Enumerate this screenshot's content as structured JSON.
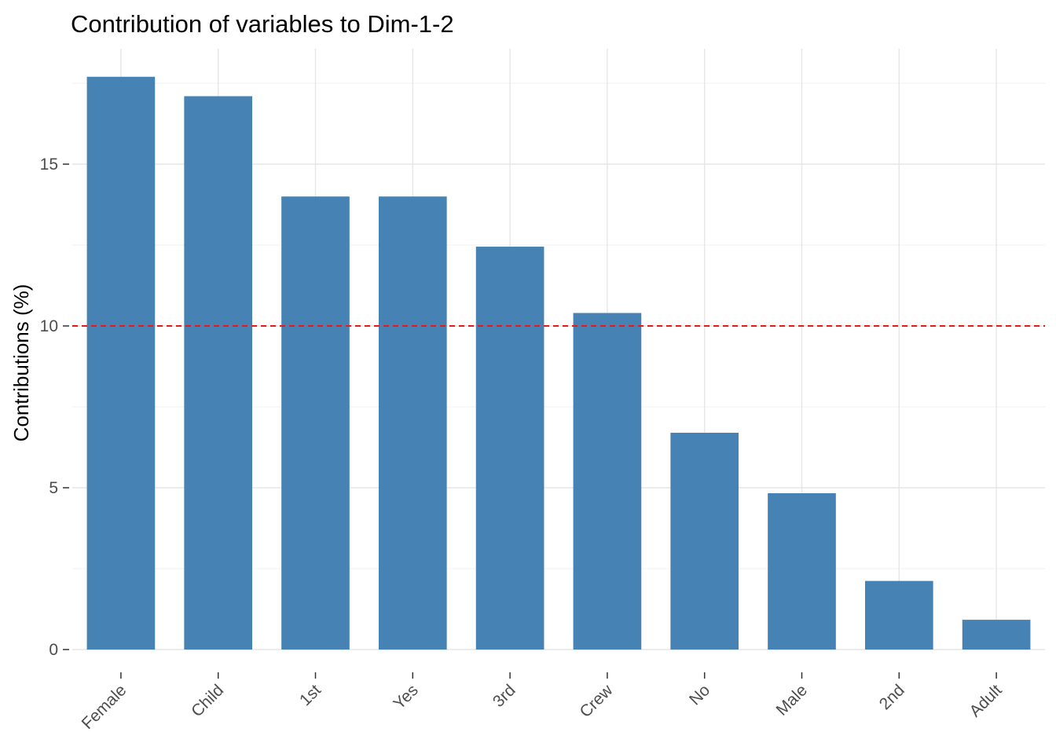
{
  "chart_data": {
    "type": "bar",
    "title": "Contribution of variables to Dim-1-2",
    "xlabel": "",
    "ylabel": "Contributions (%)",
    "categories": [
      "Female",
      "Child",
      "1st",
      "Yes",
      "3rd",
      "Crew",
      "No",
      "Male",
      "2nd",
      "Adult"
    ],
    "values": [
      17.7,
      17.1,
      14.0,
      14.0,
      12.45,
      10.4,
      6.7,
      4.83,
      2.12,
      0.92
    ],
    "ylim": [
      0,
      17.7
    ],
    "yticks": [
      0,
      5,
      10,
      15
    ],
    "reference_line": {
      "value": 10,
      "style": "dashed",
      "color": "#e31a1c"
    },
    "bar_color": "#4682b4",
    "grid": true,
    "legend": "none"
  }
}
